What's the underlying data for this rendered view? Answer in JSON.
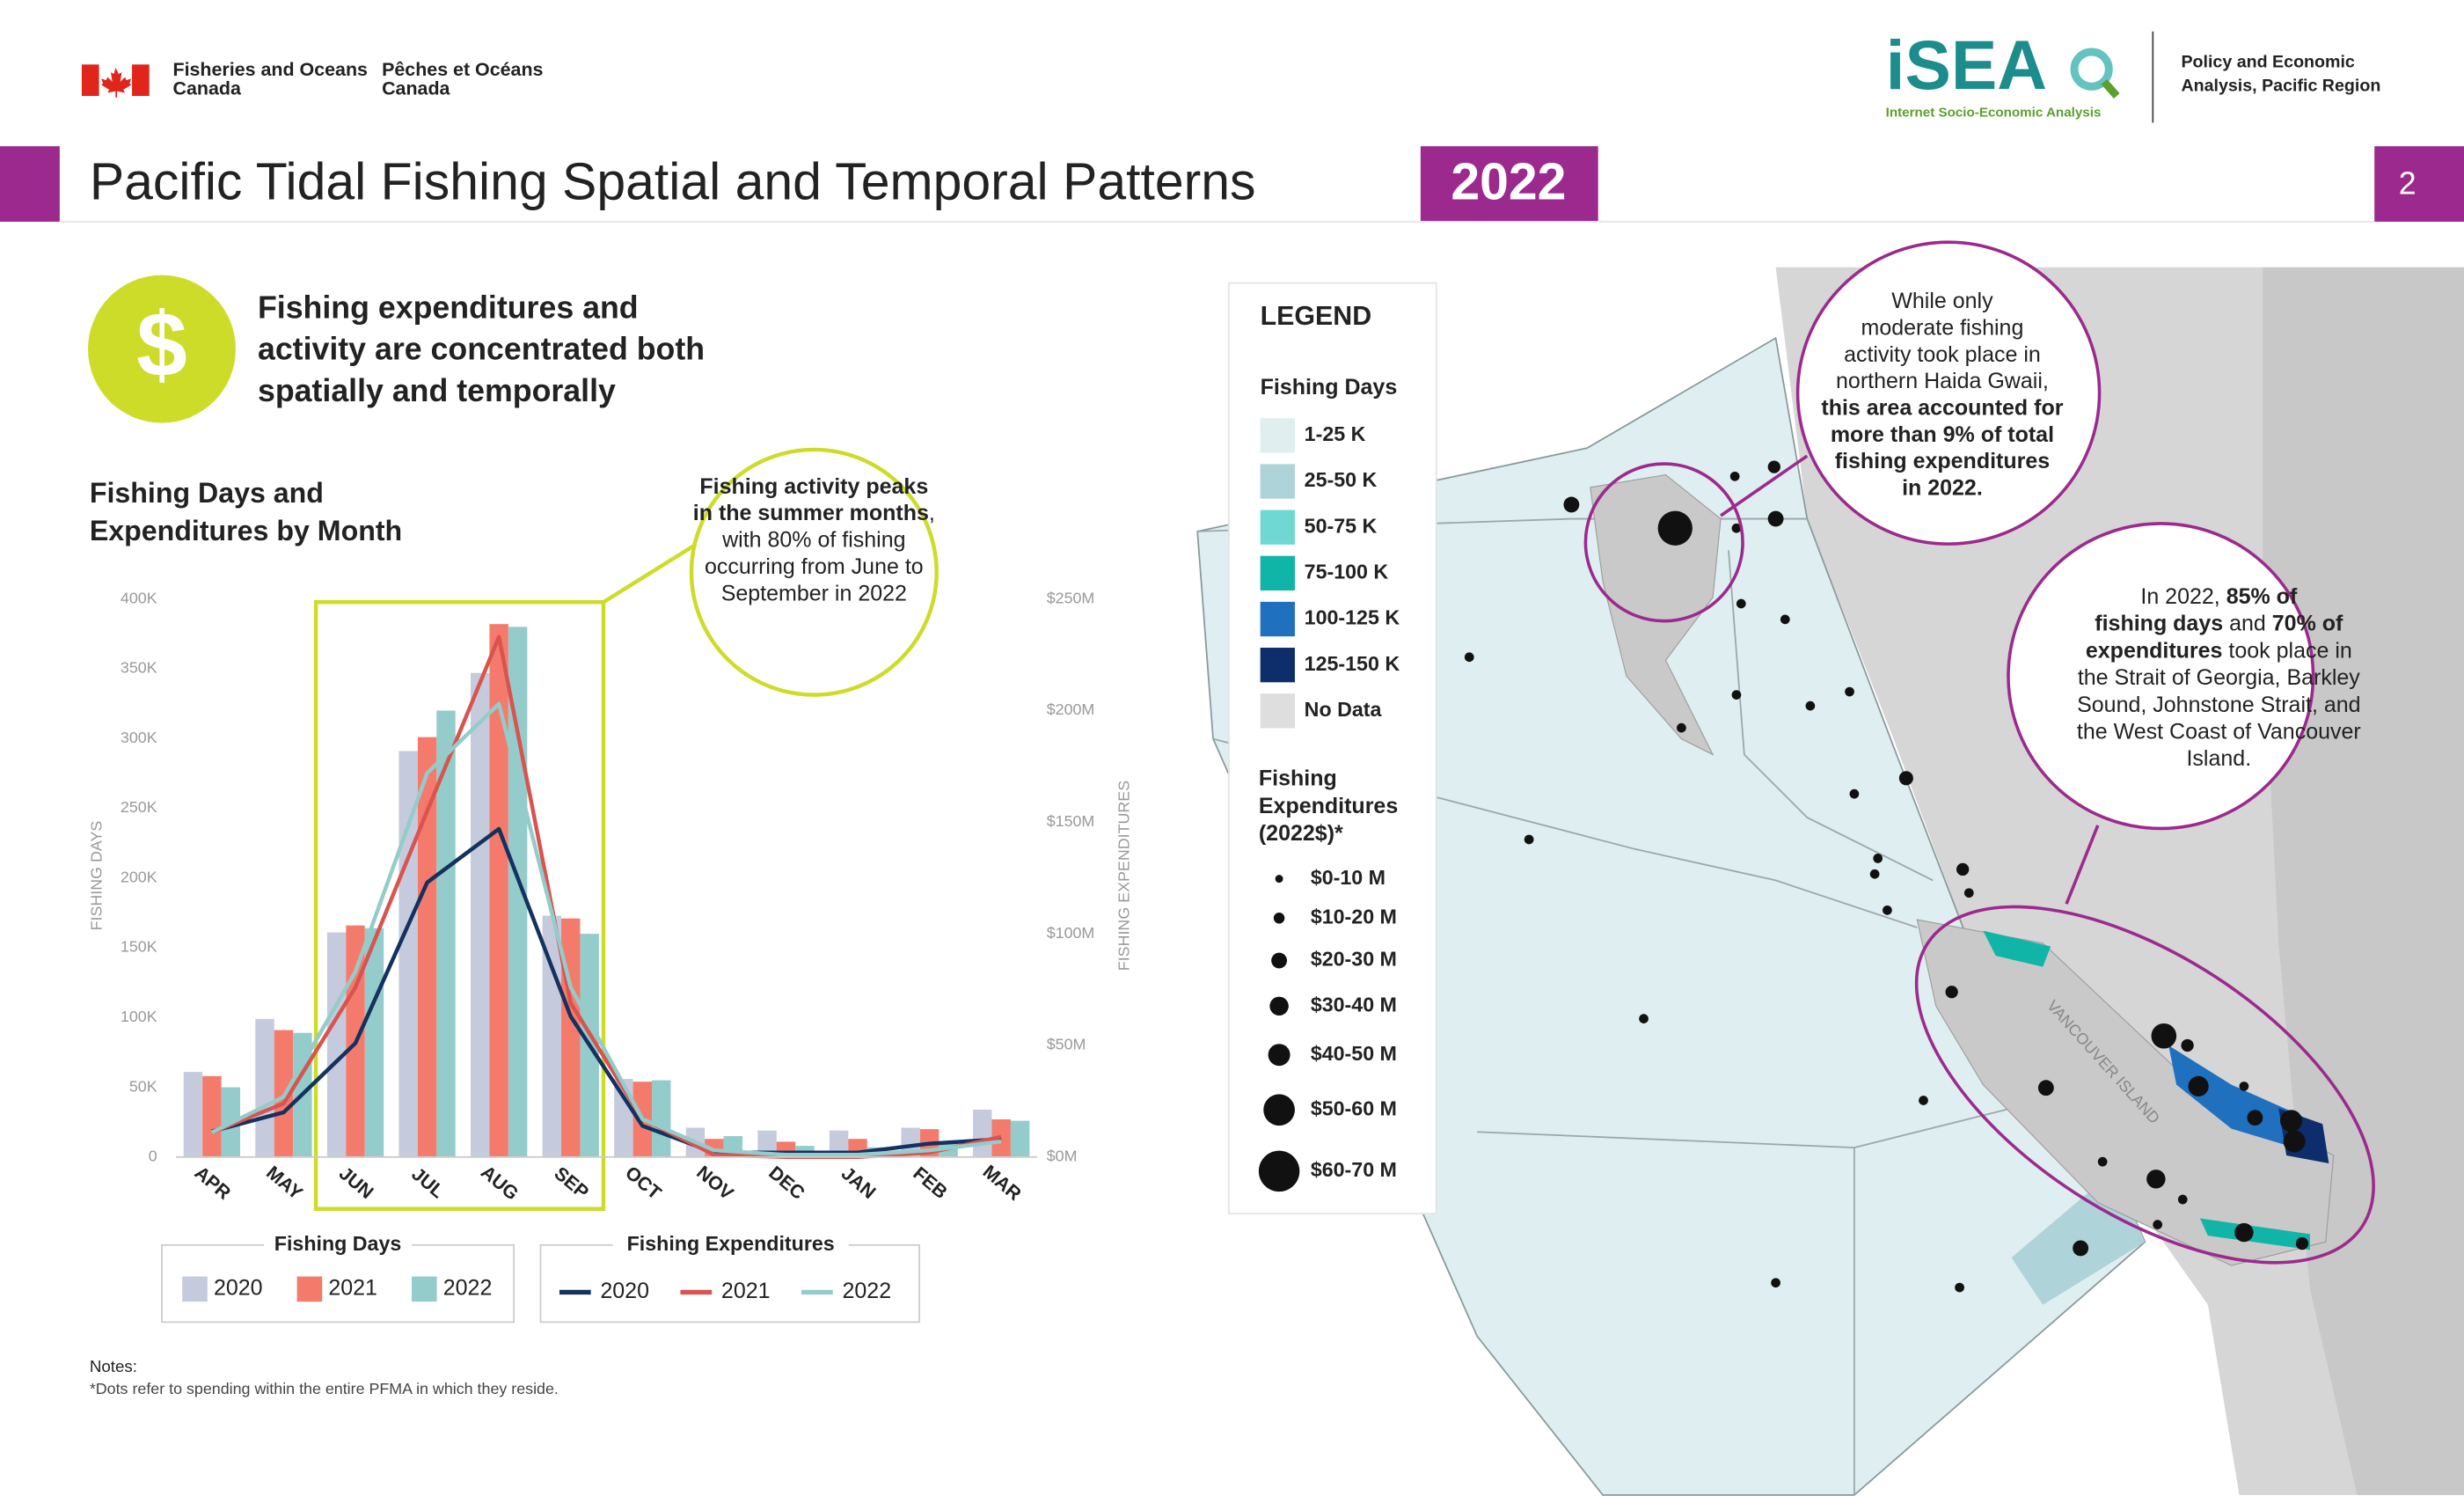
{
  "header": {
    "org_en": [
      "Fisheries and Oceans",
      "Canada"
    ],
    "org_fr": [
      "Pêches et Océans",
      "Canada"
    ],
    "logo": "iSEA",
    "logo_sub": "Internet Socio-Economic Analysis",
    "unit": [
      "Policy and Economic",
      "Analysis, Pacific Region"
    ],
    "page": 2
  },
  "title": "Pacific Tidal Fishing Spatial and Temporal Patterns",
  "year_badge": "2022",
  "key_message": {
    "icon": "$",
    "lines": [
      "Fishing expenditures and",
      "activity are concentrated both",
      "spatially and temporally"
    ]
  },
  "chart_data": {
    "type": "bar",
    "title": [
      "Fishing Days and",
      "Expenditures by Month"
    ],
    "y_label": "FISHING DAYS",
    "y2_label": "FISHING EXPENDITURES",
    "categories": [
      "APR",
      "MAY",
      "JUN",
      "JUL",
      "AUG",
      "SEP",
      "OCT",
      "NOV",
      "DEC",
      "JAN",
      "FEB",
      "MAR"
    ],
    "ylim": [
      0,
      400000
    ],
    "yticks": [
      {
        "value": 0,
        "label": "0"
      },
      {
        "value": 50000,
        "label": "50K"
      },
      {
        "value": 100000,
        "label": "100K"
      },
      {
        "value": 150000,
        "label": "150K"
      },
      {
        "value": 200000,
        "label": "200K"
      },
      {
        "value": 250000,
        "label": "250K"
      },
      {
        "value": 300000,
        "label": "300K"
      },
      {
        "value": 350000,
        "label": "350K"
      },
      {
        "value": 400000,
        "label": "400K"
      }
    ],
    "y2lim": [
      0,
      250000000
    ],
    "y2ticks": [
      {
        "value": 0,
        "label": "$0M"
      },
      {
        "value": 50000000,
        "label": "$50M"
      },
      {
        "value": 100000000,
        "label": "$100M"
      },
      {
        "value": 150000000,
        "label": "$150M"
      },
      {
        "value": 200000000,
        "label": "$200M"
      },
      {
        "value": 250000000,
        "label": "$250M"
      }
    ],
    "grid": false,
    "legend_titles": [
      "Fishing Days",
      "Fishing Expenditures"
    ],
    "series": [
      {
        "name": "2020",
        "type": "bar",
        "axis": "y",
        "color": "#c5cbdc",
        "values": [
          61000,
          99000,
          161000,
          291000,
          347000,
          173000,
          56000,
          21000,
          19000,
          19000,
          21000,
          34000
        ]
      },
      {
        "name": "2021",
        "type": "bar",
        "axis": "y",
        "color": "#f47b6c",
        "values": [
          58000,
          91000,
          166000,
          301000,
          382000,
          171000,
          54000,
          13000,
          11000,
          13000,
          20000,
          27000
        ]
      },
      {
        "name": "2022",
        "type": "bar",
        "axis": "y",
        "color": "#93ccca",
        "values": [
          50000,
          89000,
          164000,
          320000,
          380000,
          160000,
          55000,
          15000,
          8000,
          7000,
          10000,
          26000
        ]
      },
      {
        "name": "2020",
        "type": "line",
        "axis": "y2",
        "color": "#14315f",
        "values": [
          11500000,
          20000000,
          51000000,
          123000000,
          147000000,
          63000000,
          14000000,
          2000000,
          2000000,
          2000000,
          6000000,
          8000000
        ]
      },
      {
        "name": "2021",
        "type": "line",
        "axis": "y2",
        "color": "#d9534f",
        "values": [
          11000000,
          24000000,
          76000000,
          155000000,
          233000000,
          69000000,
          17000000,
          1000000,
          0,
          0,
          2000000,
          9000000
        ]
      },
      {
        "name": "2022",
        "type": "line",
        "axis": "y2",
        "color": "#93ccca",
        "values": [
          11000000,
          27000000,
          83000000,
          172000000,
          203000000,
          76000000,
          17000000,
          3000000,
          1000000,
          1000000,
          3000000,
          7000000
        ]
      }
    ],
    "annotation": [
      [
        {
          "text": "Fishing activity peaks",
          "bold": true
        }
      ],
      [
        {
          "text": "in the summer months",
          "bold": true
        },
        {
          "text": ",",
          "bold": false
        }
      ],
      [
        {
          "text": "with 80% of fishing",
          "bold": false
        }
      ],
      [
        {
          "text": "occurring from June to",
          "bold": false
        }
      ],
      [
        {
          "text": "September in 2022",
          "bold": false
        }
      ]
    ]
  },
  "map": {
    "legend": {
      "title": "LEGEND",
      "days_title": "Fishing Days",
      "days": [
        {
          "label": "1-25 K",
          "color": "#e0eef0"
        },
        {
          "label": "25-50 K",
          "color": "#aed3d8"
        },
        {
          "label": "50-75 K",
          "color": "#6fd8d3"
        },
        {
          "label": "75-100 K",
          "color": "#10b5a8"
        },
        {
          "label": "100-125 K",
          "color": "#2070c0"
        },
        {
          "label": "125-150 K",
          "color": "#0d2d6b"
        },
        {
          "label": "No Data",
          "color": "#dedede"
        }
      ],
      "exp_title": [
        "Fishing",
        "Expenditures",
        "(2022$)*"
      ],
      "exp": [
        "$0-10 M",
        "$10-20 M",
        "$20-30 M",
        "$30-40 M",
        "$40-50 M",
        "$50-60 M",
        "$60-70 M"
      ]
    },
    "island_label": "VANCOUVER ISLAND",
    "callout_north": [
      [
        {
          "text": "While only",
          "bold": false
        }
      ],
      [
        {
          "text": "moderate fishing",
          "bold": false
        }
      ],
      [
        {
          "text": "activity took place in",
          "bold": false
        }
      ],
      [
        {
          "text": "northern Haida Gwaii,",
          "bold": false
        }
      ],
      [
        {
          "text": "this area accounted for",
          "bold": true
        }
      ],
      [
        {
          "text": "more than 9% of total",
          "bold": true
        }
      ],
      [
        {
          "text": "fishing expenditures",
          "bold": true
        }
      ],
      [
        {
          "text": "in 2022.",
          "bold": true
        }
      ]
    ],
    "callout_south": [
      [
        {
          "text": "In 2022, ",
          "bold": false
        },
        {
          "text": "85% of",
          "bold": true
        }
      ],
      [
        {
          "text": "fishing days",
          "bold": true
        },
        {
          "text": " and ",
          "bold": false
        },
        {
          "text": "70% of",
          "bold": true
        }
      ],
      [
        {
          "text": "expenditures",
          "bold": true
        },
        {
          "text": " took place in",
          "bold": false
        }
      ],
      [
        {
          "text": "the Strait of Georgia, Barkley",
          "bold": false
        }
      ],
      [
        {
          "text": "Sound, Johnstone Strait, and",
          "bold": false
        }
      ],
      [
        {
          "text": "the West Coast of Vancouver",
          "bold": false
        }
      ],
      [
        {
          "text": "Island.",
          "bold": false
        }
      ]
    ]
  },
  "notes": {
    "title": "Notes:",
    "text": "*Dots refer to spending within the entire PFMA in which they reside."
  }
}
